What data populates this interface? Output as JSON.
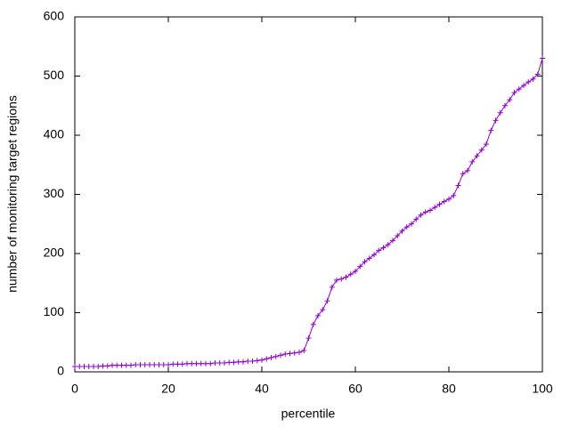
{
  "chart_data": {
    "type": "line",
    "xlabel": "percentile",
    "ylabel": "number of monitoring target regions",
    "x": [
      0,
      1,
      2,
      3,
      4,
      5,
      6,
      7,
      8,
      9,
      10,
      11,
      12,
      13,
      14,
      15,
      16,
      17,
      18,
      19,
      20,
      21,
      22,
      23,
      24,
      25,
      26,
      27,
      28,
      29,
      30,
      31,
      32,
      33,
      34,
      35,
      36,
      37,
      38,
      39,
      40,
      41,
      42,
      43,
      44,
      45,
      46,
      47,
      48,
      49,
      50,
      51,
      52,
      53,
      54,
      55,
      56,
      57,
      58,
      59,
      60,
      61,
      62,
      63,
      64,
      65,
      66,
      67,
      68,
      69,
      70,
      71,
      72,
      73,
      74,
      75,
      76,
      77,
      78,
      79,
      80,
      81,
      82,
      83,
      84,
      85,
      86,
      87,
      88,
      89,
      90,
      91,
      92,
      93,
      94,
      95,
      96,
      97,
      98,
      99,
      100
    ],
    "values": [
      9,
      9,
      9,
      9,
      9,
      9,
      10,
      10,
      11,
      11,
      11,
      11,
      11,
      12,
      12,
      12,
      12,
      12,
      12,
      12,
      12,
      13,
      13,
      13,
      14,
      14,
      14,
      14,
      14,
      14,
      15,
      15,
      15,
      16,
      16,
      17,
      17,
      18,
      18,
      19,
      20,
      22,
      24,
      26,
      28,
      30,
      31,
      32,
      33,
      36,
      57,
      80,
      95,
      105,
      120,
      143,
      155,
      157,
      160,
      165,
      170,
      178,
      186,
      192,
      198,
      205,
      210,
      215,
      222,
      230,
      238,
      245,
      250,
      258,
      265,
      270,
      273,
      278,
      283,
      288,
      292,
      298,
      315,
      335,
      340,
      355,
      365,
      375,
      385,
      408,
      425,
      438,
      450,
      460,
      472,
      478,
      484,
      490,
      495,
      503,
      530
    ],
    "color": "#9400d3",
    "xlim": [
      0,
      100
    ],
    "xticks": [
      0,
      20,
      40,
      60,
      80,
      100
    ],
    "ylim": [
      0,
      600
    ],
    "yticks": [
      0,
      100,
      200,
      300,
      400,
      500,
      600
    ]
  }
}
